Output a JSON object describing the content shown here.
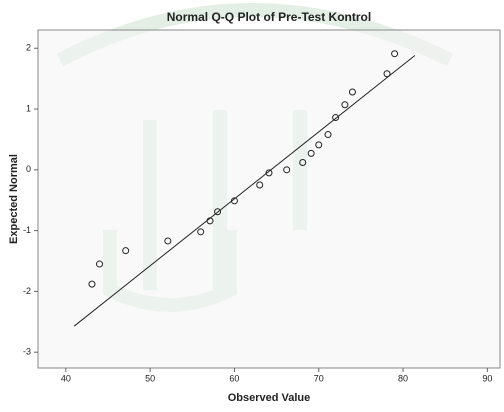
{
  "chart_data": {
    "type": "scatter",
    "title": "Normal Q-Q Plot of Pre-Test Kontrol",
    "x_label": "Observed Value",
    "y_label": "Expected Normal",
    "series": [
      {
        "color": "#222222",
        "x": [
          43.1,
          44,
          47.1,
          52.1,
          56,
          57.1,
          58,
          60,
          63,
          64.1,
          66.2,
          68.1,
          69.1,
          70,
          71.1,
          72,
          73.1,
          74,
          78.1,
          79
        ],
        "values": [
          -1.88,
          -1.55,
          -1.33,
          -1.17,
          -1.02,
          -0.84,
          -0.69,
          -0.51,
          -0.25,
          -0.05,
          0,
          0.12,
          0.27,
          0.41,
          0.58,
          0.86,
          1.07,
          1.28,
          1.58,
          1.91
        ]
      }
    ],
    "reference_line": {
      "color": "#222222",
      "x": [
        41,
        81.4
      ],
      "values": [
        -2.57,
        1.88
      ]
    },
    "xlim": [
      36.7,
      91.5
    ],
    "xticks": [
      40,
      50,
      60,
      70,
      80,
      90
    ],
    "ylim": [
      -3.26,
      2.3
    ],
    "yticks": [
      -3,
      -2,
      -1,
      0,
      1,
      2
    ]
  }
}
